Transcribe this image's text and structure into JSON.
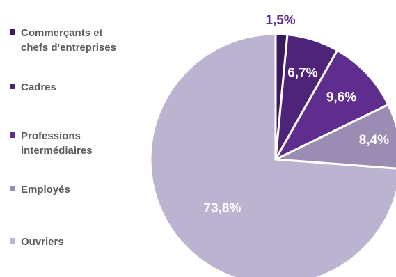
{
  "chart_data": {
    "type": "pie",
    "categories": [
      "Commerçants et chefs d'entreprises",
      "Cadres",
      "Professions intermédiaires",
      "Employés",
      "Ouvriers"
    ],
    "values": [
      1.5,
      6.7,
      9.6,
      8.4,
      73.8
    ],
    "data_labels": [
      "1,5%",
      "6,7%",
      "9,6%",
      "8,4%",
      "73,8%"
    ],
    "colors": [
      "#3b1a5c",
      "#4e2478",
      "#5f2d8e",
      "#9a8cb2",
      "#bbb3cf"
    ],
    "label_colors": [
      "#5f2d8e",
      "#ffffff",
      "#ffffff",
      "#ffffff",
      "#ffffff"
    ],
    "legend_placement": "left",
    "legend_colors": [
      "#3b1a5c",
      "#4e2478",
      "#5f2d8e",
      "#9a8cb2",
      "#bbb3cf"
    ]
  },
  "legend": {
    "items": [
      {
        "lines": [
          "Commerçants et",
          "chefs d'entreprises"
        ]
      },
      {
        "lines": [
          "Cadres"
        ]
      },
      {
        "lines": [
          "Professions",
          "intermédiaires"
        ]
      },
      {
        "lines": [
          "Employés"
        ]
      },
      {
        "lines": [
          "Ouvriers"
        ]
      }
    ]
  }
}
